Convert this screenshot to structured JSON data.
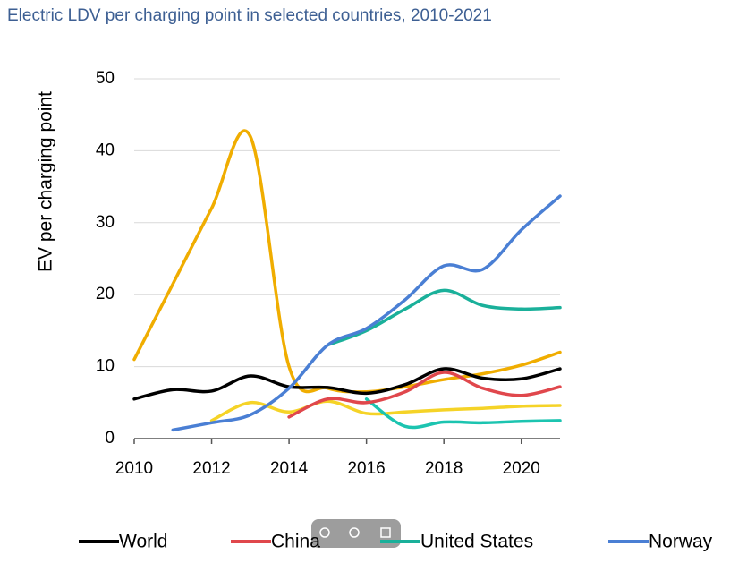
{
  "chart_data": {
    "type": "line",
    "title": "Electric LDV per charging point in selected countries, 2010-2021",
    "y_label": "EV per charging point",
    "x": [
      2010,
      2011,
      2012,
      2013,
      2014,
      2015,
      2016,
      2017,
      2018,
      2019,
      2020,
      2021
    ],
    "series": [
      {
        "name": "World",
        "color": "#000000",
        "values": [
          5.5,
          6.8,
          6.6,
          8.7,
          7.2,
          7.1,
          6.3,
          7.5,
          9.7,
          8.4,
          8.3,
          9.7
        ]
      },
      {
        "name": "China",
        "color": "#e0474c",
        "values": [
          null,
          null,
          null,
          null,
          3,
          5.5,
          5,
          6.5,
          9.2,
          7,
          6,
          7.2
        ]
      },
      {
        "name": "United States",
        "color": "#1ab09a",
        "values": [
          null,
          null,
          null,
          null,
          null,
          13,
          15,
          18,
          20.6,
          18.5,
          18,
          18.2
        ]
      },
      {
        "name": "Norway",
        "color": "#4a7fd4",
        "values": [
          null,
          1.2,
          2.2,
          3.3,
          7,
          13,
          15.3,
          19.3,
          24,
          23.5,
          29,
          33.7
        ]
      },
      {
        "color": "#f0ad00",
        "values": [
          11,
          21.5,
          32,
          42,
          10,
          7,
          6.5,
          7.2,
          8.2,
          9,
          10.2,
          12
        ]
      },
      {
        "color": "#f5d327",
        "values": [
          null,
          null,
          2.5,
          5,
          3.7,
          5.2,
          3.5,
          3.7,
          4,
          4.2,
          4.5,
          4.6
        ]
      },
      {
        "color": "#1cc4b0",
        "values": [
          null,
          null,
          null,
          null,
          null,
          null,
          5.5,
          1.7,
          2.3,
          2.2,
          2.4,
          2.5
        ]
      }
    ],
    "xlim": [
      2010,
      2021
    ],
    "xticks": [
      2010,
      2012,
      2014,
      2016,
      2018,
      2020
    ],
    "ylim": [
      0,
      50
    ],
    "yticks": [
      0,
      10,
      20,
      30,
      40,
      50
    ],
    "grid": true,
    "legend": "bottom"
  }
}
